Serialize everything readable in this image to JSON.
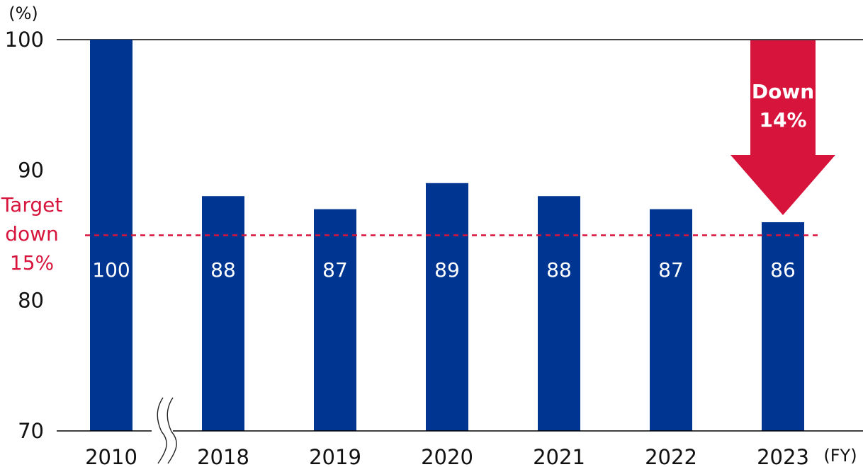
{
  "chart_data": {
    "type": "bar",
    "categories": [
      "2010",
      "2018",
      "2019",
      "2020",
      "2021",
      "2022",
      "2023"
    ],
    "values": [
      100,
      88,
      87,
      89,
      88,
      87,
      86
    ],
    "data_labels": [
      "100",
      "88",
      "87",
      "89",
      "88",
      "87",
      "86"
    ],
    "ylabel": "(%)",
    "xlabel": "(FY)",
    "ylim": [
      70,
      100
    ],
    "yticks": [
      "100",
      "90",
      "80",
      "70"
    ],
    "ytick_values": [
      100,
      90,
      80,
      70
    ],
    "axis_break_after": "2010",
    "target": {
      "value": 85,
      "label_lines": [
        "Target",
        "down",
        "15%"
      ]
    },
    "annotation": {
      "label_lines": [
        "Down",
        "14%"
      ],
      "category": "2023"
    },
    "colors": {
      "bar": "#003591",
      "target": "#d7143c",
      "arrow": "#d7143c",
      "axis": "#000000"
    }
  }
}
